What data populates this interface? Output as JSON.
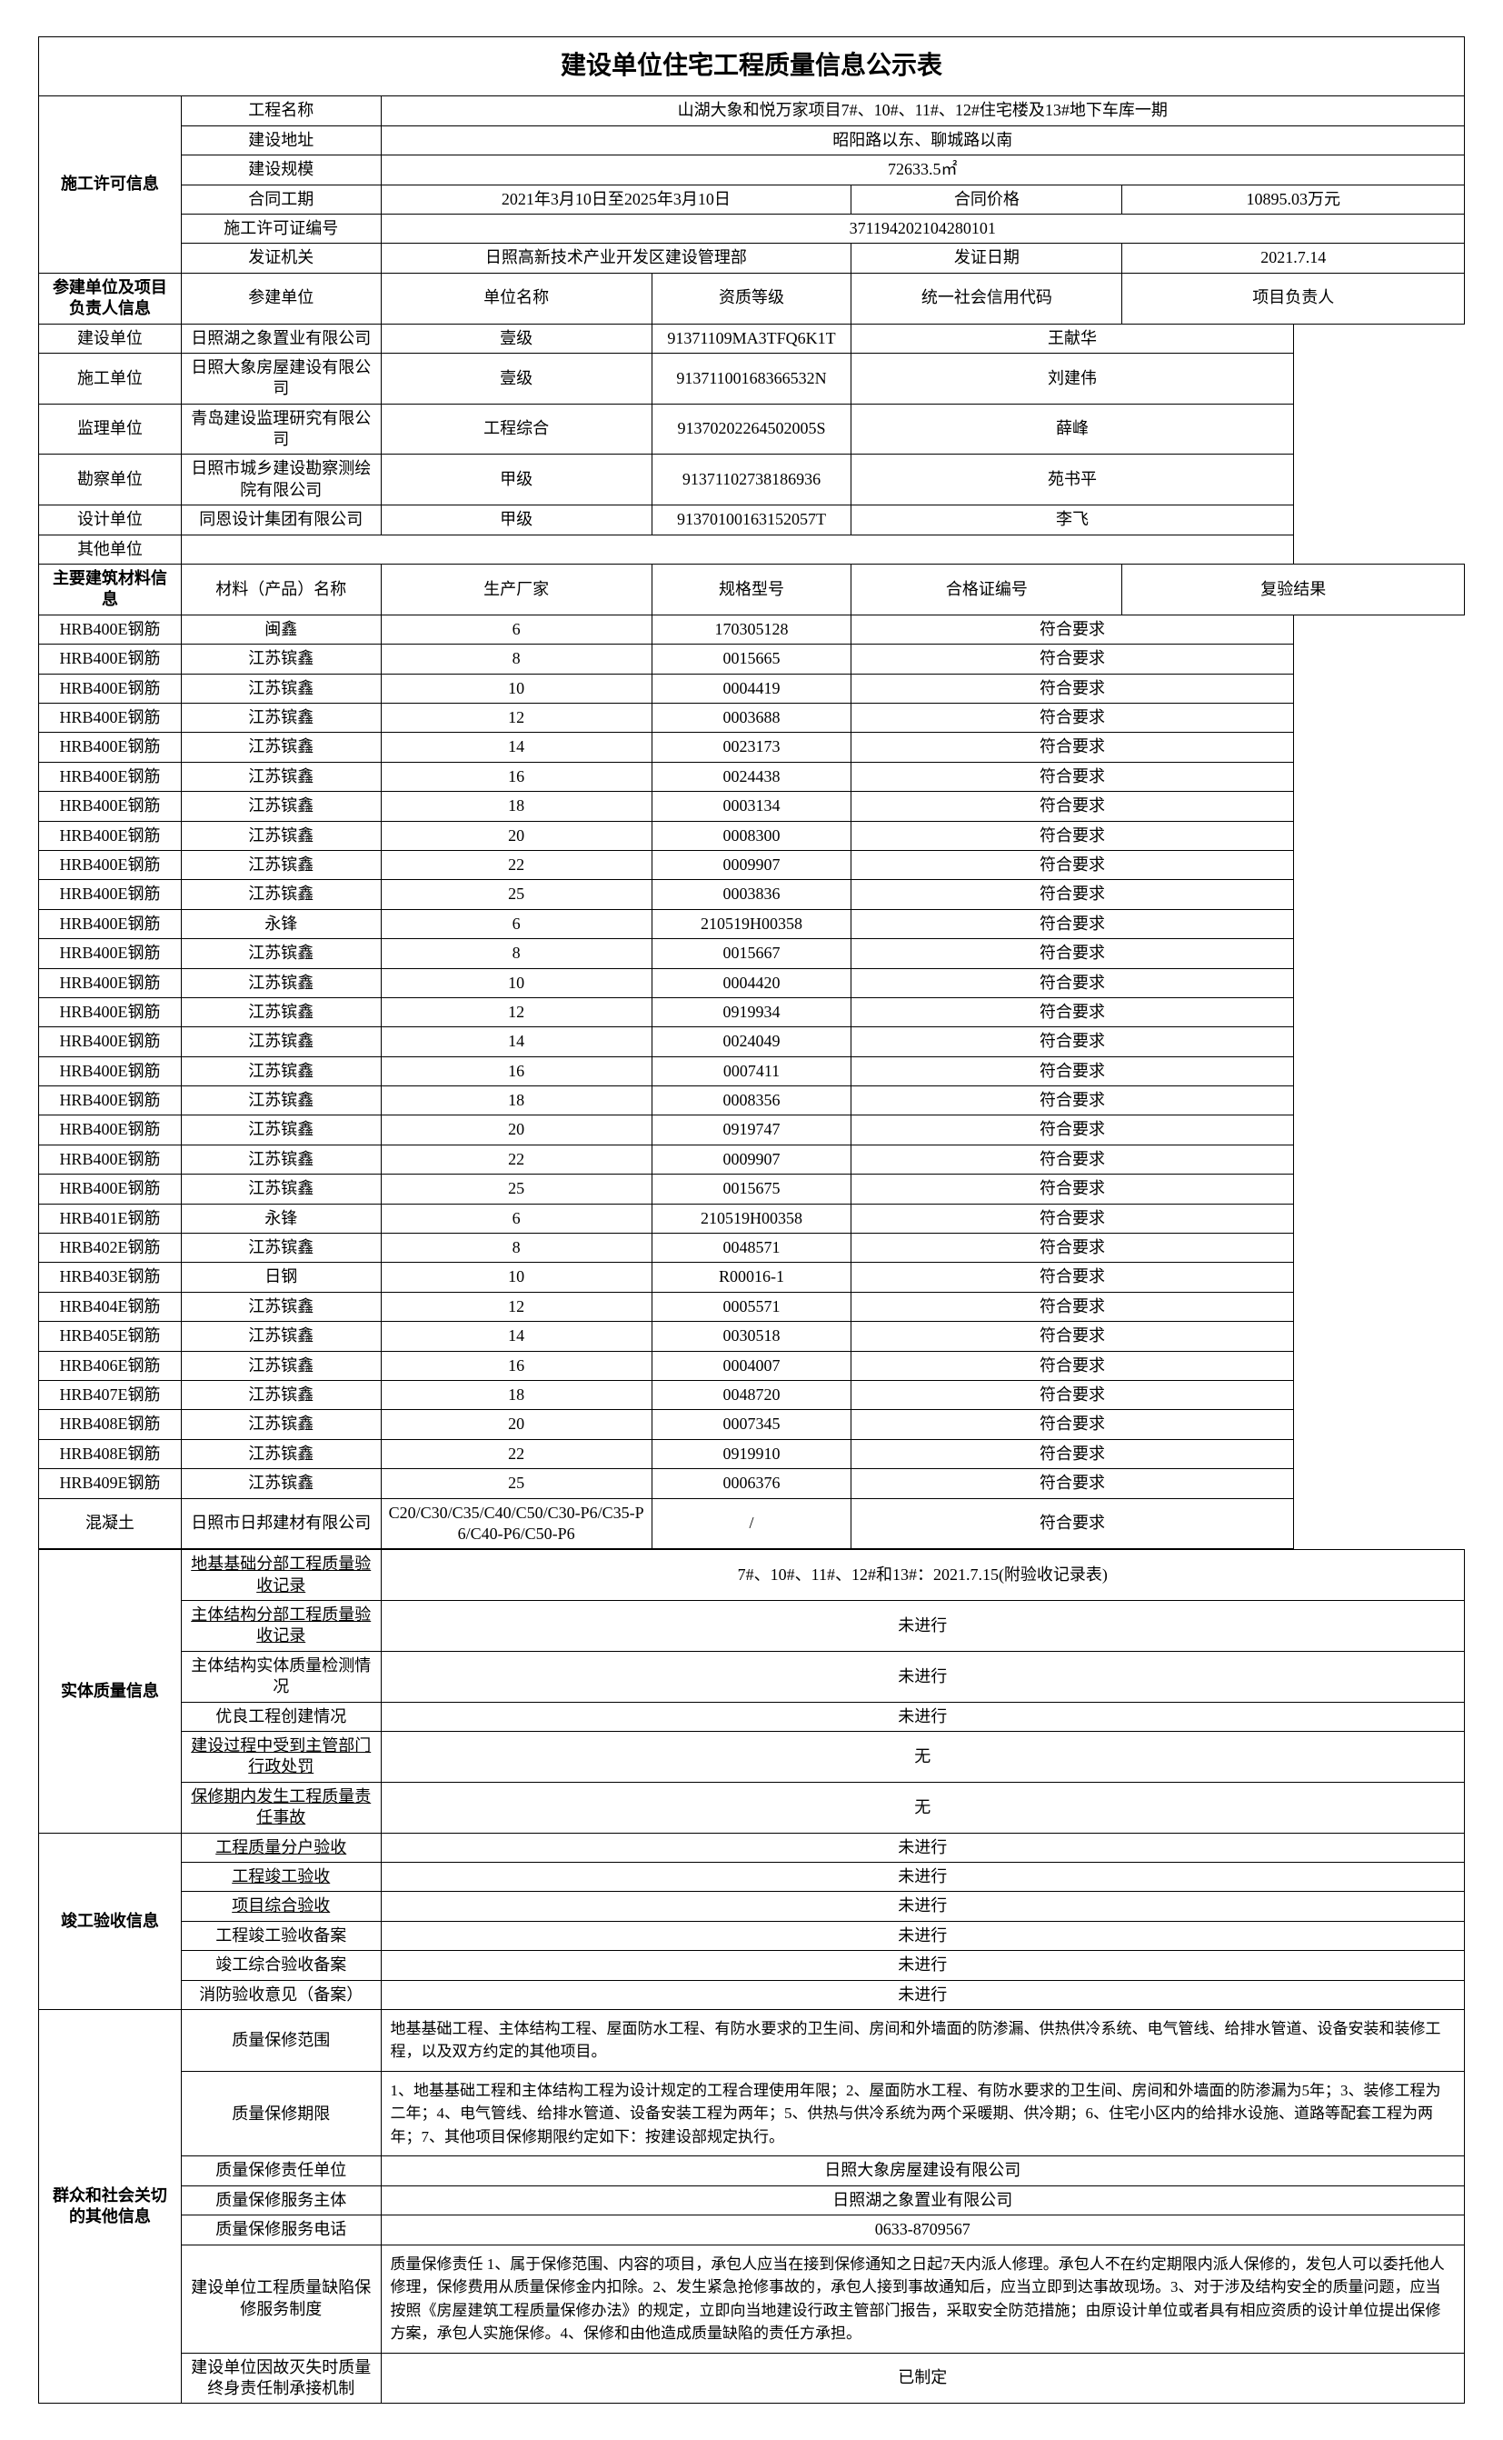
{
  "title": "建设单位住宅工程质量信息公示表",
  "permit": {
    "section": "施工许可信息",
    "project_name_label": "工程名称",
    "project_name": "山湖大象和悦万家项目7#、10#、11#、12#住宅楼及13#地下车库一期",
    "address_label": "建设地址",
    "address": "昭阳路以东、聊城路以南",
    "scale_label": "建设规模",
    "scale": "72633.5㎡",
    "duration_label": "合同工期",
    "duration": "2021年3月10日至2025年3月10日",
    "price_label": "合同价格",
    "price": "10895.03万元",
    "permit_no_label": "施工许可证编号",
    "permit_no": "371194202104280101",
    "issuer_label": "发证机关",
    "issuer": "日照高新技术产业开发区建设管理部",
    "issue_date_label": "发证日期",
    "issue_date": "2021.7.14"
  },
  "participants": {
    "section": "参建单位及项目负责人信息",
    "header_unit": "参建单位",
    "header_name": "单位名称",
    "header_grade": "资质等级",
    "header_credit": "统一社会信用代码",
    "header_leader": "项目负责人",
    "rows": [
      {
        "role": "建设单位",
        "name": "日照湖之象置业有限公司",
        "grade": "壹级",
        "credit": "91371109MA3TFQ6K1T",
        "leader": "王献华"
      },
      {
        "role": "施工单位",
        "name": "日照大象房屋建设有限公司",
        "grade": "壹级",
        "credit": "91371100168366532N",
        "leader": "刘建伟"
      },
      {
        "role": "监理单位",
        "name": "青岛建设监理研究有限公司",
        "grade": "工程综合",
        "credit": "91370202264502005S",
        "leader": "薛峰"
      },
      {
        "role": "勘察单位",
        "name": "日照市城乡建设勘察测绘院有限公司",
        "grade": "甲级",
        "credit": "91371102738186936",
        "leader": "苑书平"
      },
      {
        "role": "设计单位",
        "name": "同恩设计集团有限公司",
        "grade": "甲级",
        "credit": "91370100163152057T",
        "leader": "李飞"
      }
    ],
    "other_label": "其他单位"
  },
  "materials": {
    "section": "主要建筑材料信息",
    "header_name": "材料（产品）名称",
    "header_maker": "生产厂家",
    "header_spec": "规格型号",
    "header_cert": "合格证编号",
    "header_result": "复验结果",
    "rows": [
      {
        "name": "HRB400E钢筋",
        "maker": "闽鑫",
        "spec": "6",
        "cert": "170305128",
        "result": "符合要求"
      },
      {
        "name": "HRB400E钢筋",
        "maker": "江苏镔鑫",
        "spec": "8",
        "cert": "0015665",
        "result": "符合要求"
      },
      {
        "name": "HRB400E钢筋",
        "maker": "江苏镔鑫",
        "spec": "10",
        "cert": "0004419",
        "result": "符合要求"
      },
      {
        "name": "HRB400E钢筋",
        "maker": "江苏镔鑫",
        "spec": "12",
        "cert": "0003688",
        "result": "符合要求"
      },
      {
        "name": "HRB400E钢筋",
        "maker": "江苏镔鑫",
        "spec": "14",
        "cert": "0023173",
        "result": "符合要求"
      },
      {
        "name": "HRB400E钢筋",
        "maker": "江苏镔鑫",
        "spec": "16",
        "cert": "0024438",
        "result": "符合要求"
      },
      {
        "name": "HRB400E钢筋",
        "maker": "江苏镔鑫",
        "spec": "18",
        "cert": "0003134",
        "result": "符合要求"
      },
      {
        "name": "HRB400E钢筋",
        "maker": "江苏镔鑫",
        "spec": "20",
        "cert": "0008300",
        "result": "符合要求"
      },
      {
        "name": "HRB400E钢筋",
        "maker": "江苏镔鑫",
        "spec": "22",
        "cert": "0009907",
        "result": "符合要求"
      },
      {
        "name": "HRB400E钢筋",
        "maker": "江苏镔鑫",
        "spec": "25",
        "cert": "0003836",
        "result": "符合要求"
      },
      {
        "name": "HRB400E钢筋",
        "maker": "永锋",
        "spec": "6",
        "cert": "210519H00358",
        "result": "符合要求"
      },
      {
        "name": "HRB400E钢筋",
        "maker": "江苏镔鑫",
        "spec": "8",
        "cert": "0015667",
        "result": "符合要求"
      },
      {
        "name": "HRB400E钢筋",
        "maker": "江苏镔鑫",
        "spec": "10",
        "cert": "0004420",
        "result": "符合要求"
      },
      {
        "name": "HRB400E钢筋",
        "maker": "江苏镔鑫",
        "spec": "12",
        "cert": "0919934",
        "result": "符合要求"
      },
      {
        "name": "HRB400E钢筋",
        "maker": "江苏镔鑫",
        "spec": "14",
        "cert": "0024049",
        "result": "符合要求"
      },
      {
        "name": "HRB400E钢筋",
        "maker": "江苏镔鑫",
        "spec": "16",
        "cert": "0007411",
        "result": "符合要求"
      },
      {
        "name": "HRB400E钢筋",
        "maker": "江苏镔鑫",
        "spec": "18",
        "cert": "0008356",
        "result": "符合要求"
      },
      {
        "name": "HRB400E钢筋",
        "maker": "江苏镔鑫",
        "spec": "20",
        "cert": "0919747",
        "result": "符合要求"
      },
      {
        "name": "HRB400E钢筋",
        "maker": "江苏镔鑫",
        "spec": "22",
        "cert": "0009907",
        "result": "符合要求"
      },
      {
        "name": "HRB400E钢筋",
        "maker": "江苏镔鑫",
        "spec": "25",
        "cert": "0015675",
        "result": "符合要求"
      },
      {
        "name": "HRB401E钢筋",
        "maker": "永锋",
        "spec": "6",
        "cert": "210519H00358",
        "result": "符合要求"
      },
      {
        "name": "HRB402E钢筋",
        "maker": "江苏镔鑫",
        "spec": "8",
        "cert": "0048571",
        "result": "符合要求"
      },
      {
        "name": "HRB403E钢筋",
        "maker": "日钢",
        "spec": "10",
        "cert": "R00016-1",
        "result": "符合要求"
      },
      {
        "name": "HRB404E钢筋",
        "maker": "江苏镔鑫",
        "spec": "12",
        "cert": "0005571",
        "result": "符合要求"
      },
      {
        "name": "HRB405E钢筋",
        "maker": "江苏镔鑫",
        "spec": "14",
        "cert": "0030518",
        "result": "符合要求"
      },
      {
        "name": "HRB406E钢筋",
        "maker": "江苏镔鑫",
        "spec": "16",
        "cert": "0004007",
        "result": "符合要求"
      },
      {
        "name": "HRB407E钢筋",
        "maker": "江苏镔鑫",
        "spec": "18",
        "cert": "0048720",
        "result": "符合要求"
      },
      {
        "name": "HRB408E钢筋",
        "maker": "江苏镔鑫",
        "spec": "20",
        "cert": "0007345",
        "result": "符合要求"
      },
      {
        "name": "HRB408E钢筋",
        "maker": "江苏镔鑫",
        "spec": "22",
        "cert": "0919910",
        "result": "符合要求"
      },
      {
        "name": "HRB409E钢筋",
        "maker": "江苏镔鑫",
        "spec": "25",
        "cert": "0006376",
        "result": "符合要求"
      },
      {
        "name": "混凝土",
        "maker": "日照市日邦建材有限公司",
        "spec": "C20/C30/C35/C40/C50/C30-P6/C35-P6/C40-P6/C50-P6",
        "cert": "/",
        "result": "符合要求"
      }
    ]
  },
  "quality": {
    "section": "实体质量信息",
    "foundation_label": "地基基础分部工程质量验收记录",
    "foundation_value": "7#、10#、11#、12#和13#：2021.7.15(附验收记录表)",
    "structure_accept_label": "主体结构分部工程质量验收记录",
    "structure_accept_value": "未进行",
    "structure_test_label": "主体结构实体质量检测情况",
    "structure_test_value": "未进行",
    "excellence_label": "优良工程创建情况",
    "excellence_value": "未进行",
    "penalty_label": "建设过程中受到主管部门行政处罚",
    "penalty_value": "无",
    "warranty_issue_label": "保修期内发生工程质量责任事故",
    "warranty_issue_value": "无"
  },
  "completion": {
    "section": "竣工验收信息",
    "household_label": "工程质量分户验收",
    "household_value": "未进行",
    "project_complete_label": "工程竣工验收",
    "project_complete_value": "未进行",
    "comprehensive_label": "项目综合验收",
    "comprehensive_value": "未进行",
    "complete_record_label": "工程竣工验收备案",
    "complete_record_value": "未进行",
    "comp_record_label": "竣工综合验收备案",
    "comp_record_value": "未进行",
    "fire_label": "消防验收意见（备案）",
    "fire_value": "未进行"
  },
  "public": {
    "section": "群众和社会关切的其他信息",
    "warranty_scope_label": "质量保修范围",
    "warranty_scope_value": "地基基础工程、主体结构工程、屋面防水工程、有防水要求的卫生间、房间和外墙面的防渗漏、供热供冷系统、电气管线、给排水管道、设备安装和装修工程，以及双方约定的其他项目。",
    "warranty_period_label": "质量保修期限",
    "warranty_period_value": "1、地基基础工程和主体结构工程为设计规定的工程合理使用年限；2、屋面防水工程、有防水要求的卫生间、房间和外墙面的防渗漏为5年；3、装修工程为二年；4、电气管线、给排水管道、设备安装工程为两年；5、供热与供冷系统为两个采暖期、供冷期；6、住宅小区内的给排水设施、道路等配套工程为两年；7、其他项目保修期限约定如下：按建设部规定执行。",
    "warranty_unit_label": "质量保修责任单位",
    "warranty_unit_value": "日照大象房屋建设有限公司",
    "service_body_label": "质量保修服务主体",
    "service_body_value": "日照湖之象置业有限公司",
    "service_tel_label": "质量保修服务电话",
    "service_tel_value": "0633-8709567",
    "defect_system_label": "建设单位工程质量缺陷保修服务制度",
    "defect_system_value": "质量保修责任    1、属于保修范围、内容的项目，承包人应当在接到保修通知之日起7天内派人修理。承包人不在约定期限内派人保修的，发包人可以委托他人修理，保修费用从质量保修金内扣除。2、发生紧急抢修事故的，承包人接到事故通知后，应当立即到达事故现场。3、对于涉及结构安全的质量问题，应当按照《房屋建筑工程质量保修办法》的规定，立即向当地建设行政主管部门报告，采取安全防范措施；由原设计单位或者具有相应资质的设计单位提出保修方案，承包人实施保修。4、保修和由他造成质量缺陷的责任方承担。",
    "loss_mechanism_label": "建设单位因故灭失时质量终身责任制承接机制",
    "loss_mechanism_value": "已制定"
  }
}
